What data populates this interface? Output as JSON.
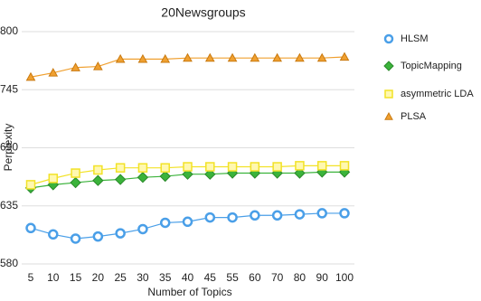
{
  "chart_data": {
    "type": "line",
    "title": "20Newsgroups",
    "x_label": "Number of Topics",
    "y_label": "Perplexity",
    "categories": [
      "5",
      "10",
      "15",
      "20",
      "25",
      "30",
      "35",
      "40",
      "45",
      "55",
      "60",
      "70",
      "80",
      "90",
      "100"
    ],
    "ylim": [
      580,
      800
    ],
    "yticks": [
      580,
      635,
      690,
      745,
      800
    ],
    "grid": true,
    "series": [
      {
        "name": "HLSM",
        "color": "#4a9fe8",
        "marker": "circle",
        "values": [
          614,
          608,
          604,
          606,
          609,
          613,
          619,
          620,
          624,
          624,
          626,
          626,
          627,
          628,
          628
        ]
      },
      {
        "name": "TopicMapping",
        "color": "#3bb33b",
        "marker": "diamond",
        "values": [
          652,
          655,
          657,
          659,
          660,
          662,
          663,
          665,
          665,
          666,
          666,
          666,
          666,
          667,
          667
        ]
      },
      {
        "name": "asymmetric LDA",
        "color": "#f2e227",
        "marker": "square",
        "values": [
          655,
          661,
          666,
          669,
          671,
          671,
          671,
          672,
          672,
          672,
          672,
          672,
          673,
          673,
          673
        ]
      },
      {
        "name": "PLSA",
        "color": "#f0a030",
        "marker": "triangle",
        "values": [
          757,
          761,
          766,
          767,
          774,
          774,
          774,
          775,
          775,
          775,
          775,
          775,
          775,
          775,
          776
        ]
      }
    ]
  }
}
